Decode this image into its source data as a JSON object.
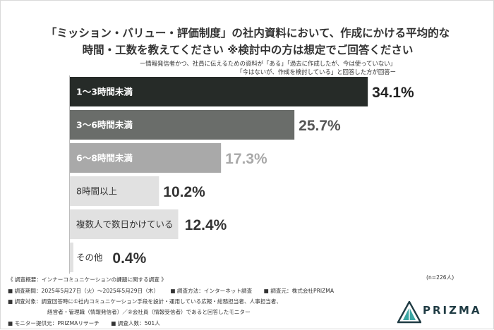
{
  "title_line1": "「ミッション・バリュー・評価制度」の社内資料において、作成にかける平均的な",
  "title_line2": "時間・工数を教えてください ※検討中の方は想定でご回答ください",
  "subtitle_line1": "ー情報発信者かつ、社員に伝えるための資料が「ある」「過去に作成したが、今は使っていない」",
  "subtitle_line2": "「今はないが、作成を検討している」と回答した方が回答ー",
  "sample_note": "(n=226人)",
  "chart_data": {
    "type": "bar",
    "orientation": "horizontal",
    "categories": [
      "1〜3時間未満",
      "3〜6時間未満",
      "6〜8時間未満",
      "8時間以上",
      "複数人で数日かけている",
      "その他"
    ],
    "values": [
      34.1,
      25.7,
      17.3,
      10.2,
      12.4,
      0.4
    ],
    "value_labels": [
      "34.1%",
      "25.7%",
      "17.3%",
      "10.2%",
      "12.4%",
      "0.4%"
    ],
    "unit": "%",
    "xlim": [
      0,
      40
    ],
    "bar_colors": [
      "#262b28",
      "#6a6d6a",
      "#a9a9a9",
      "#e1e1e1",
      "#e1e1e1",
      "#e1e1e1"
    ],
    "label_colors": [
      "#ffffff",
      "#ffffff",
      "#ffffff",
      "#333333",
      "#333333",
      "#333333"
    ],
    "value_colors": [
      "#222222",
      "#555555",
      "#a9a9a9",
      "#333333",
      "#333333",
      "#333333"
    ],
    "grid": false,
    "legend": "none"
  },
  "footnotes": {
    "line1": "《 調査概要：インナーコミュニケーションの課題に関する調査 》",
    "line2a": "■ 調査期間：2025年5月27日（火）〜2025年5月29日（木）",
    "line2b": "■ 調査方法：インターネット調査",
    "line2c": "■ 調査元：株式会社PRIZMA",
    "line3": "■ 調査対象：調査回答時に①社内コミュニケーション手段を設計・運用している広報・総務担当者、人事担当者、",
    "line4": "経営者・管理職（情報発信者）／②会社員（情報受信者）であると回答したモニター",
    "line5a": "■ モニター提供元：PRIZMAリサーチ",
    "line5b": "■ 調査人数：501人"
  },
  "logo": {
    "text": "PRIZMA",
    "colors": [
      "#1f3b43",
      "#3aa6a3"
    ]
  }
}
